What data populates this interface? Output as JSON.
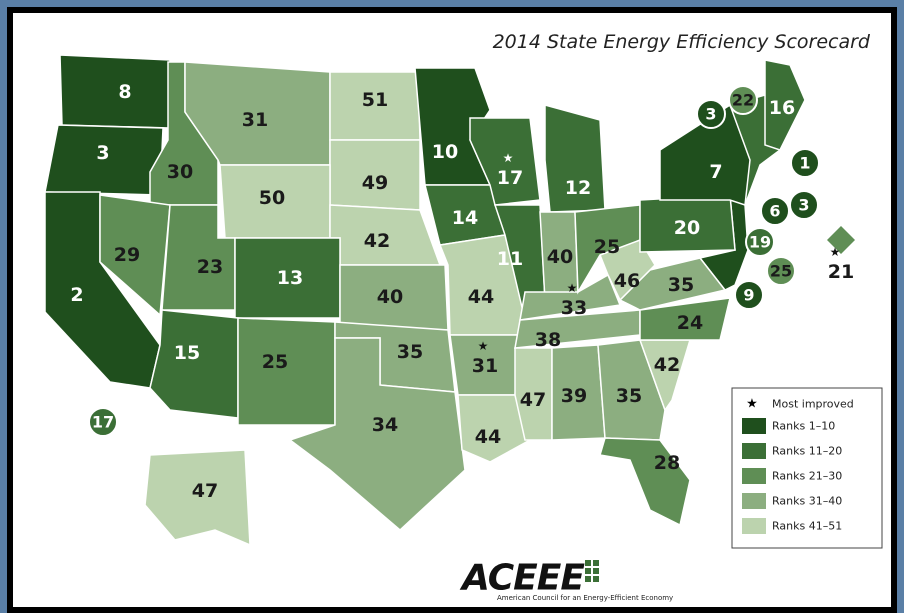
{
  "title": "2014 State Energy Efficiency Scorecard",
  "states": [
    {
      "rank": 8,
      "color": "#1f4f1d"
    },
    {
      "rank": 3,
      "color": "#1f4f1d"
    },
    {
      "rank": 2,
      "color": "#1f4f1d"
    },
    {
      "rank": 30,
      "color": "#5f8e55"
    },
    {
      "rank": 31,
      "color": "#8cae80"
    },
    {
      "rank": 51,
      "color": "#bcd3ae"
    },
    {
      "rank": 49,
      "color": "#bcd3ae"
    },
    {
      "rank": 50,
      "color": "#bcd3ae"
    },
    {
      "rank": 42,
      "color": "#bcd3ae"
    },
    {
      "rank": 29,
      "color": "#5f8e55"
    },
    {
      "rank": 23,
      "color": "#5f8e55"
    },
    {
      "rank": 13,
      "color": "#3b6f36"
    },
    {
      "rank": 15,
      "color": "#3b6f36"
    },
    {
      "rank": 25,
      "color": "#5f8e55"
    },
    {
      "rank": 40,
      "color": "#8cae80"
    },
    {
      "rank": 35,
      "color": "#8cae80"
    },
    {
      "rank": 34,
      "color": "#8cae80"
    },
    {
      "rank": 10,
      "color": "#1f4f1d"
    },
    {
      "rank": 14,
      "color": "#3b6f36"
    },
    {
      "rank": 44,
      "color": "#bcd3ae"
    },
    {
      "rank": 31,
      "color": "#8cae80",
      "improved": true
    },
    {
      "rank": 44,
      "color": "#bcd3ae"
    },
    {
      "rank": 17,
      "color": "#3b6f36",
      "improved": true
    },
    {
      "rank": 11,
      "color": "#3b6f36"
    },
    {
      "rank": 47,
      "color": "#bcd3ae"
    },
    {
      "rank": 12,
      "color": "#3b6f36"
    },
    {
      "rank": 40,
      "color": "#8cae80"
    },
    {
      "rank": 33,
      "color": "#8cae80",
      "improved": true
    },
    {
      "rank": 38,
      "color": "#8cae80"
    },
    {
      "rank": 39,
      "color": "#8cae80"
    },
    {
      "rank": 35,
      "color": "#8cae80"
    },
    {
      "rank": 28,
      "color": "#5f8e55"
    },
    {
      "rank": 42,
      "color": "#bcd3ae"
    },
    {
      "rank": 24,
      "color": "#5f8e55"
    },
    {
      "rank": 35,
      "color": "#8cae80"
    },
    {
      "rank": 46,
      "color": "#bcd3ae"
    },
    {
      "rank": 25,
      "color": "#5f8e55"
    },
    {
      "rank": 20,
      "color": "#3b6f36"
    },
    {
      "rank": 7,
      "color": "#1f4f1d"
    },
    {
      "rank": 16,
      "color": "#3b6f36"
    },
    {
      "rank": 3,
      "color": "#1f4f1d"
    },
    {
      "rank": 22,
      "color": "#5f8e55"
    },
    {
      "rank": 1,
      "color": "#1f4f1d"
    },
    {
      "rank": 3,
      "color": "#1f4f1d"
    },
    {
      "rank": 6,
      "color": "#1f4f1d"
    },
    {
      "rank": 19,
      "color": "#3b6f36"
    },
    {
      "rank": 25,
      "color": "#5f8e55"
    },
    {
      "rank": 9,
      "color": "#1f4f1d"
    },
    {
      "rank": 21,
      "color": "#5f8e55",
      "improved": true
    },
    {
      "rank": 17,
      "color": "#3b6f36"
    },
    {
      "rank": 47,
      "color": "#bcd3ae"
    }
  ],
  "legend": {
    "most_improved": "Most improved",
    "items": [
      {
        "label": "Ranks 1–10",
        "color": "#1f4f1d"
      },
      {
        "label": "Ranks 11–20",
        "color": "#3b6f36"
      },
      {
        "label": "Ranks 21–30",
        "color": "#5f8e55"
      },
      {
        "label": "Ranks 31–40",
        "color": "#8cae80"
      },
      {
        "label": "Ranks 41–51",
        "color": "#bcd3ae"
      }
    ]
  },
  "logo": {
    "name": "ACEEE",
    "tagline": "American Council for an Energy-Efficient Economy"
  }
}
